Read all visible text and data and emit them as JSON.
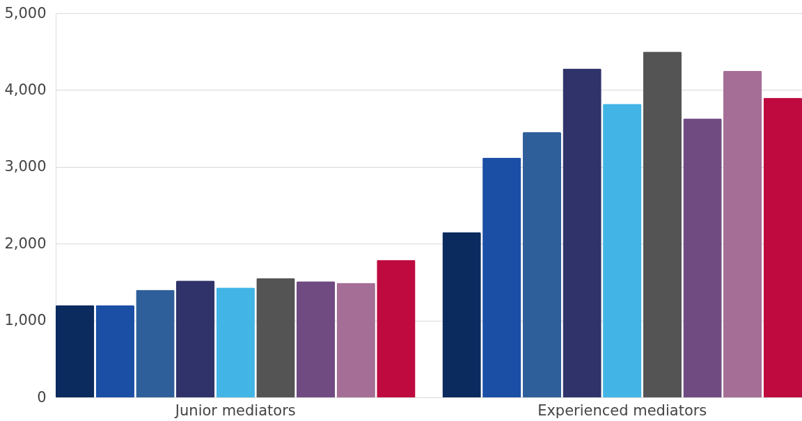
{
  "chart_data": {
    "type": "bar",
    "categories": [
      "Junior mediators",
      "Experienced mediators"
    ],
    "series": [
      {
        "color": "#0b2a5e",
        "values": [
          1200,
          2150
        ]
      },
      {
        "color": "#1b4fa6",
        "values": [
          1200,
          3120
        ]
      },
      {
        "color": "#2f5f9a",
        "values": [
          1400,
          3450
        ]
      },
      {
        "color": "#30336a",
        "values": [
          1520,
          4280
        ]
      },
      {
        "color": "#42b5e6",
        "values": [
          1430,
          3820
        ]
      },
      {
        "color": "#545454",
        "values": [
          1550,
          4500
        ]
      },
      {
        "color": "#6f4b82",
        "values": [
          1510,
          3630
        ]
      },
      {
        "color": "#a56e96",
        "values": [
          1490,
          4250
        ]
      },
      {
        "color": "#be0a3f",
        "values": [
          1790,
          3900
        ]
      }
    ],
    "ylim": [
      0,
      5000
    ],
    "yticks": [
      {
        "value": 0,
        "label": "0"
      },
      {
        "value": 1000,
        "label": "1,000"
      },
      {
        "value": 2000,
        "label": "2,000"
      },
      {
        "value": 3000,
        "label": "3,000"
      },
      {
        "value": 4000,
        "label": "4,000"
      },
      {
        "value": 5000,
        "label": "5,000"
      }
    ],
    "grid": "y",
    "legend": false
  }
}
